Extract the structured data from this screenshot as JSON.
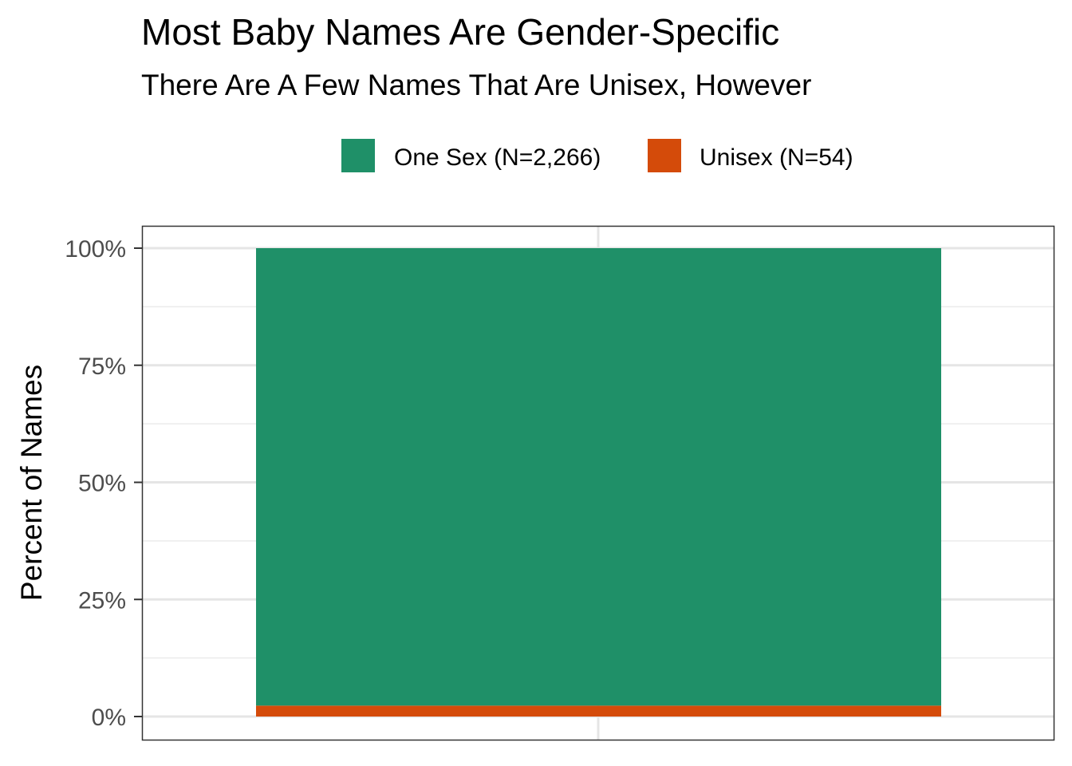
{
  "chart_data": {
    "type": "bar",
    "stacked": true,
    "normalized": true,
    "title": "Most Baby Names Are Gender-Specific",
    "subtitle": "There Are A Few Names That Are Unisex, However",
    "xlabel": "",
    "ylabel": "Percent of Names",
    "ylim": [
      0,
      1
    ],
    "y_ticks": [
      0,
      0.25,
      0.5,
      0.75,
      1
    ],
    "y_tick_labels": [
      "0%",
      "25%",
      "50%",
      "75%",
      "100%"
    ],
    "y_minor_ticks": [
      0.125,
      0.375,
      0.625,
      0.875
    ],
    "categories": [
      ""
    ],
    "series": [
      {
        "name": "One Sex (N=2,266)",
        "values": [
          0.9767
        ],
        "color": "#1F9068"
      },
      {
        "name": "Unisex (N=54)",
        "values": [
          0.0233
        ],
        "color": "#D44B0A"
      }
    ],
    "legend_position": "top",
    "grid": true
  }
}
